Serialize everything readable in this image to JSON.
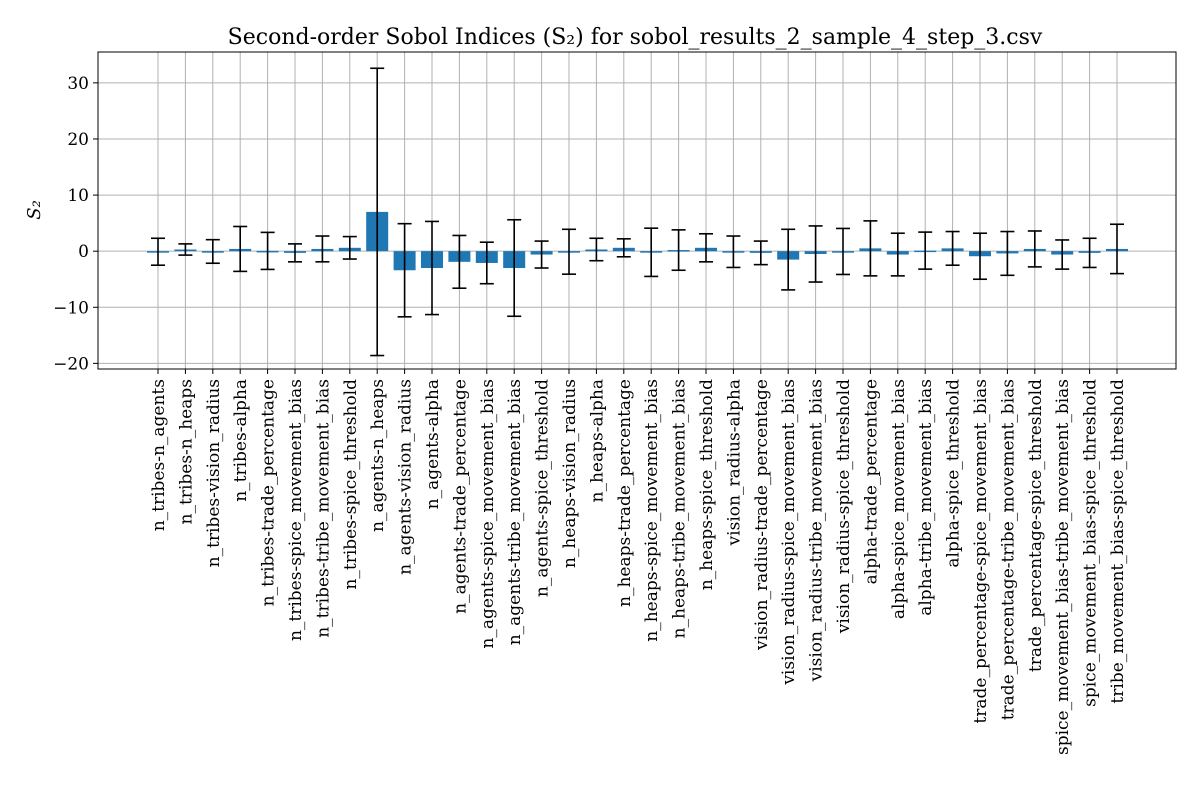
{
  "chart_data": {
    "type": "bar",
    "title": "Second-order Sobol Indices (S₂) for sobol_results_2_sample_4_step_3.csv",
    "xlabel": "",
    "ylabel": "S₂",
    "ylim": [
      -21,
      35.5
    ],
    "yticks": [
      -20,
      -10,
      0,
      10,
      20,
      30
    ],
    "ytick_labels": [
      "−20",
      "−10",
      "0",
      "10",
      "20",
      "30"
    ],
    "grid": true,
    "bar_color": "#1f77b4",
    "categories": [
      "n_tribes-n_agents",
      "n_tribes-n_heaps",
      "n_tribes-vision_radius",
      "n_tribes-alpha",
      "n_tribes-trade_percentage",
      "n_tribes-spice_movement_bias",
      "n_tribes-tribe_movement_bias",
      "n_tribes-spice_threshold",
      "n_agents-n_heaps",
      "n_agents-vision_radius",
      "n_agents-alpha",
      "n_agents-trade_percentage",
      "n_agents-spice_movement_bias",
      "n_agents-tribe_movement_bias",
      "n_agents-spice_threshold",
      "n_heaps-vision_radius",
      "n_heaps-alpha",
      "n_heaps-trade_percentage",
      "n_heaps-spice_movement_bias",
      "n_heaps-tribe_movement_bias",
      "n_heaps-spice_threshold",
      "vision_radius-alpha",
      "vision_radius-trade_percentage",
      "vision_radius-spice_movement_bias",
      "vision_radius-tribe_movement_bias",
      "vision_radius-spice_threshold",
      "alpha-trade_percentage",
      "alpha-spice_movement_bias",
      "alpha-tribe_movement_bias",
      "alpha-spice_threshold",
      "trade_percentage-spice_movement_bias",
      "trade_percentage-tribe_movement_bias",
      "trade_percentage-spice_threshold",
      "spice_movement_bias-tribe_movement_bias",
      "spice_movement_bias-spice_threshold",
      "tribe_movement_bias-spice_threshold"
    ],
    "values": [
      -0.1,
      0.3,
      -0.05,
      0.4,
      0.05,
      -0.3,
      0.4,
      0.6,
      7.0,
      -3.4,
      -3.0,
      -1.9,
      -2.1,
      -3.0,
      -0.6,
      -0.1,
      0.3,
      0.6,
      -0.2,
      0.2,
      0.6,
      -0.1,
      -0.3,
      -1.5,
      -0.5,
      -0.05,
      0.5,
      -0.6,
      0.1,
      0.5,
      -0.9,
      -0.4,
      0.4,
      -0.6,
      -0.3,
      0.4
    ],
    "errors": [
      2.4,
      1.0,
      2.1,
      4.0,
      3.3,
      1.6,
      2.3,
      2.0,
      25.6,
      8.3,
      8.3,
      4.7,
      3.7,
      8.6,
      2.4,
      4.0,
      2.0,
      1.6,
      4.3,
      3.6,
      2.5,
      2.8,
      2.1,
      5.4,
      5.0,
      4.1,
      4.9,
      3.8,
      3.3,
      3.0,
      4.1,
      3.9,
      3.2,
      2.6,
      2.6,
      4.4
    ]
  }
}
